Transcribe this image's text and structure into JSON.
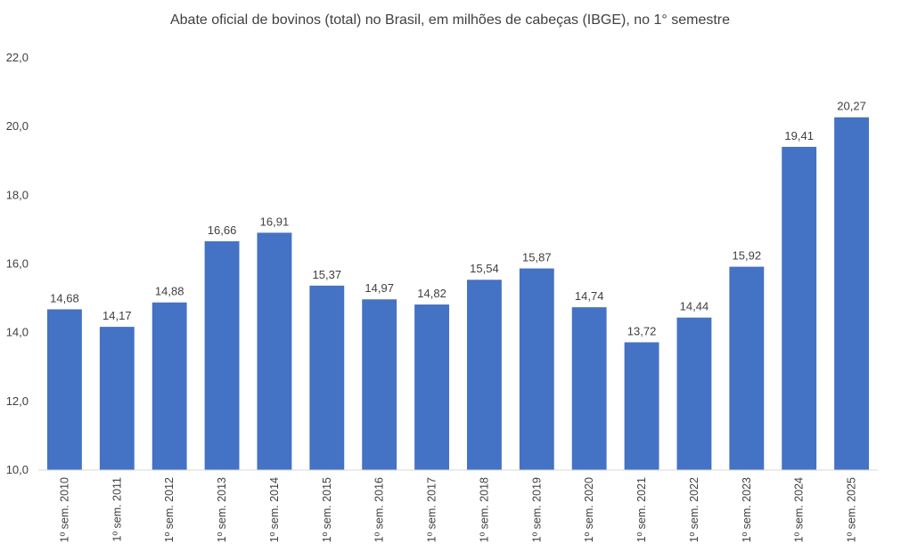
{
  "chart_data": {
    "type": "bar",
    "title": "Abate oficial de bovinos (total) no Brasil, em milhões de cabeças (IBGE), no 1° semestre",
    "xlabel": "",
    "ylabel": "",
    "ylim": [
      10,
      22
    ],
    "yticks": [
      "10,0",
      "12,0",
      "14,0",
      "16,0",
      "18,0",
      "20,0",
      "22,0"
    ],
    "ytick_values": [
      10,
      12,
      14,
      16,
      18,
      20,
      22
    ],
    "grid": false,
    "legend": "none",
    "bar_color": "#4472C4",
    "categories": [
      "1º sem. 2010",
      "1º sem. 2011",
      "1º sem. 2012",
      "1º sem. 2013",
      "1º sem. 2014",
      "1º sem. 2015",
      "1º sem. 2016",
      "1º sem. 2017",
      "1º sem. 2018",
      "1º sem. 2019",
      "1º sem. 2020",
      "1º sem. 2021",
      "1º sem. 2022",
      "1º sem. 2023",
      "1º sem. 2024",
      "1º sem. 2025"
    ],
    "values": [
      14.68,
      14.17,
      14.88,
      16.66,
      16.91,
      15.37,
      14.97,
      14.82,
      15.54,
      15.87,
      14.74,
      13.72,
      14.44,
      15.92,
      19.41,
      20.27
    ],
    "value_labels": [
      "14,68",
      "14,17",
      "14,88",
      "16,66",
      "16,91",
      "15,37",
      "14,97",
      "14,82",
      "15,54",
      "15,87",
      "14,74",
      "13,72",
      "14,44",
      "15,92",
      "19,41",
      "20,27"
    ]
  }
}
